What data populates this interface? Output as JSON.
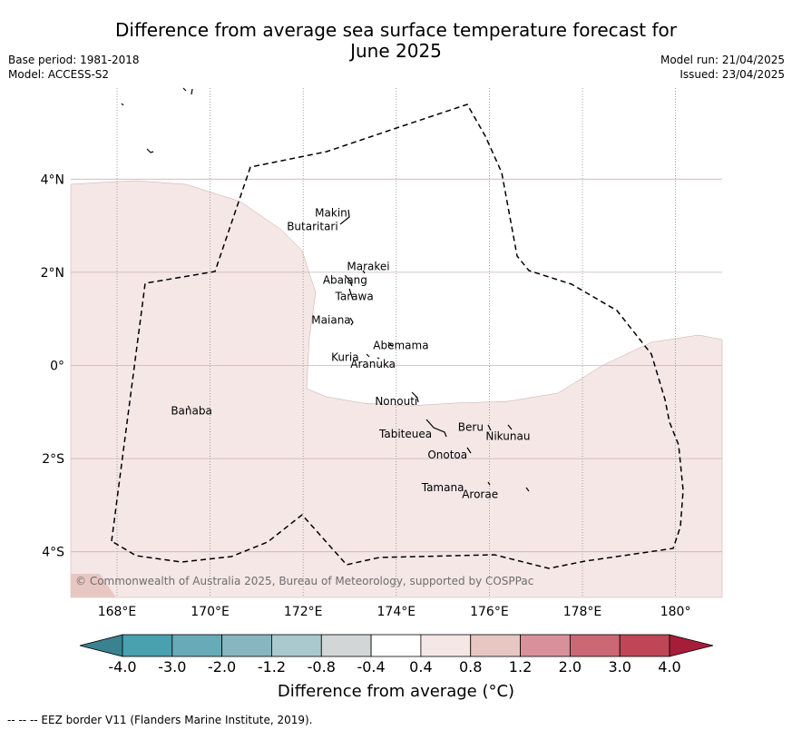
{
  "title_line1": "Difference from average sea surface temperature forecast for",
  "title_line2": "June 2025",
  "base_period": "Base period: 1981-2018",
  "model": "Model: ACCESS-S2",
  "model_run": "Model run: 21/04/2025",
  "issued": "Issued: 23/04/2025",
  "map": {
    "lon_range": [
      167,
      181
    ],
    "lat_range": [
      -5,
      6
    ],
    "lon_ticks": [
      {
        "value": 168,
        "label": "168°E"
      },
      {
        "value": 170,
        "label": "170°E"
      },
      {
        "value": 172,
        "label": "172°E"
      },
      {
        "value": 174,
        "label": "174°E"
      },
      {
        "value": 176,
        "label": "176°E"
      },
      {
        "value": 178,
        "label": "178°E"
      },
      {
        "value": 180,
        "label": "180°"
      }
    ],
    "lat_ticks": [
      {
        "value": 4,
        "label": "4°N"
      },
      {
        "value": 2,
        "label": "2°N"
      },
      {
        "value": 0,
        "label": "0°"
      },
      {
        "value": -2,
        "label": "2°S"
      },
      {
        "value": -4,
        "label": "4°S"
      }
    ],
    "islands": [
      {
        "name": "Makin",
        "lon": 172.6,
        "lat": 3.2
      },
      {
        "name": "Butaritari",
        "lon": 172.2,
        "lat": 2.9
      },
      {
        "name": "Marakei",
        "lon": 173.4,
        "lat": 2.05
      },
      {
        "name": "Abaiang",
        "lon": 172.9,
        "lat": 1.75
      },
      {
        "name": "Tarawa",
        "lon": 173.1,
        "lat": 1.4
      },
      {
        "name": "Maiana",
        "lon": 172.6,
        "lat": 0.9
      },
      {
        "name": "Abemama",
        "lon": 174.1,
        "lat": 0.35
      },
      {
        "name": "Kuria",
        "lon": 172.9,
        "lat": 0.1
      },
      {
        "name": "Aranuka",
        "lon": 173.5,
        "lat": -0.05
      },
      {
        "name": "Nonouti",
        "lon": 174.0,
        "lat": -0.85
      },
      {
        "name": "Banaba",
        "lon": 169.6,
        "lat": -1.05
      },
      {
        "name": "Beru",
        "lon": 175.6,
        "lat": -1.4
      },
      {
        "name": "Nikunau",
        "lon": 176.4,
        "lat": -1.6
      },
      {
        "name": "Tabiteuea",
        "lon": 174.2,
        "lat": -1.55
      },
      {
        "name": "Onotoa",
        "lon": 175.1,
        "lat": -2.0
      },
      {
        "name": "Tamana",
        "lon": 175.0,
        "lat": -2.7
      },
      {
        "name": "Arorae",
        "lon": 175.8,
        "lat": -2.85
      }
    ],
    "copyright": "© Commonwealth of Australia 2025, Bureau of Meteorology, supported by COSPPac",
    "anomaly_colors": {
      "zero_to_0.4": "#ffffff",
      "0.4_to_0.8": "#f4e7e6",
      "0.8_to_1.2": "#e8c7c2"
    }
  },
  "colorbar": {
    "label": "Difference from average (°C)",
    "ticks": [
      "-4.0",
      "-3.0",
      "-2.0",
      "-1.2",
      "-0.8",
      "-0.4",
      "0.4",
      "0.8",
      "1.2",
      "2.0",
      "3.0",
      "4.0"
    ],
    "colors": [
      "#3a8290",
      "#47a1af",
      "#68aab8",
      "#87b6c1",
      "#a9c9ce",
      "#d3d6d6",
      "#ffffff",
      "#f4e7e6",
      "#e8c7c2",
      "#d9909a",
      "#cb6874",
      "#c04556",
      "#a71d39"
    ]
  },
  "footer": "--  --  -- EEZ border V11 (Flanders Marine Institute, 2019)."
}
